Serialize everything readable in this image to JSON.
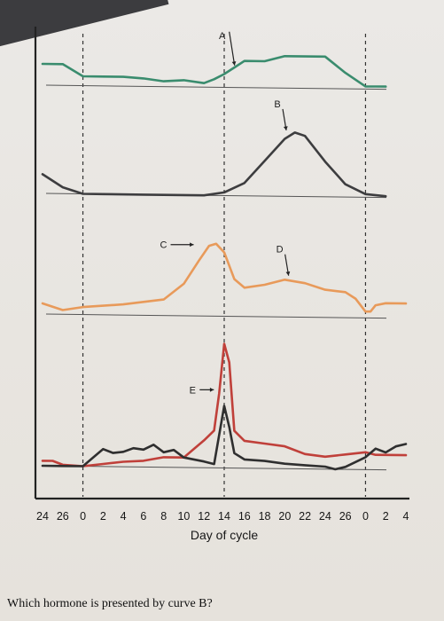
{
  "question": "Which hormone is presented by curve B?",
  "chart_data": {
    "type": "line",
    "title": "",
    "xlabel": "Day of cycle",
    "ylabel": "",
    "x": [
      -4,
      -2,
      0,
      2,
      4,
      6,
      8,
      10,
      12,
      14,
      16,
      18,
      20,
      22,
      24,
      26,
      28,
      30,
      32
    ],
    "xtick_labels": [
      "24",
      "26",
      "0",
      "2",
      "4",
      "6",
      "8",
      "10",
      "12",
      "14",
      "16",
      "18",
      "20",
      "22",
      "24",
      "26",
      "0",
      "2",
      "4"
    ],
    "xlim": [
      -4,
      32
    ],
    "grid": false,
    "reference_days": [
      0,
      14,
      28
    ],
    "annotations": [
      {
        "label": "A",
        "x": 14.5,
        "panel": 0
      },
      {
        "label": "B",
        "x": 20.5,
        "panel": 1
      },
      {
        "label": "C",
        "x": 11.5,
        "panel": 2
      },
      {
        "label": "D",
        "x": 19.5,
        "panel": 2
      },
      {
        "label": "E",
        "x": 13.5,
        "panel": 3
      }
    ],
    "panels": [
      {
        "series": [
          {
            "name": "A",
            "color": "#3a8c6e",
            "points": [
              [
                -4,
                0.8
              ],
              [
                -2,
                0.8
              ],
              [
                0,
                0.35
              ],
              [
                2,
                0.35
              ],
              [
                4,
                0.35
              ],
              [
                6,
                0.3
              ],
              [
                8,
                0.2
              ],
              [
                10,
                0.25
              ],
              [
                12,
                0.15
              ],
              [
                13,
                0.3
              ],
              [
                14,
                0.5
              ],
              [
                15,
                0.75
              ],
              [
                16,
                1.0
              ],
              [
                18,
                1.0
              ],
              [
                20,
                1.2
              ],
              [
                22,
                1.2
              ],
              [
                24,
                1.2
              ],
              [
                26,
                0.6
              ],
              [
                28,
                0.1
              ],
              [
                29,
                0.1
              ],
              [
                30,
                0.1
              ]
            ]
          }
        ]
      },
      {
        "series": [
          {
            "name": "B",
            "color": "#3d3d3f",
            "points": [
              [
                -4,
                0.3
              ],
              [
                -2,
                0.1
              ],
              [
                0,
                0
              ],
              [
                2,
                0
              ],
              [
                6,
                0
              ],
              [
                10,
                0
              ],
              [
                12,
                0
              ],
              [
                14,
                0.05
              ],
              [
                16,
                0.2
              ],
              [
                18,
                0.55
              ],
              [
                20,
                0.9
              ],
              [
                21,
                1.0
              ],
              [
                22,
                0.95
              ],
              [
                24,
                0.55
              ],
              [
                26,
                0.2
              ],
              [
                28,
                0.05
              ],
              [
                30,
                0.02
              ]
            ]
          }
        ]
      },
      {
        "series": [
          {
            "name": "C",
            "color": "#e89a5a",
            "points": [
              [
                -4,
                0.1
              ],
              [
                -2,
                0.04
              ],
              [
                0,
                0.07
              ],
              [
                4,
                0.1
              ],
              [
                8,
                0.15
              ],
              [
                10,
                0.3
              ],
              [
                11.5,
                0.52
              ],
              [
                12.5,
                0.66
              ],
              [
                13.2,
                0.68
              ],
              [
                14,
                0.6
              ],
              [
                15,
                0.35
              ],
              [
                16,
                0.27
              ],
              [
                18,
                0.3
              ],
              [
                20,
                0.35
              ],
              [
                22,
                0.32
              ],
              [
                24,
                0.26
              ],
              [
                26,
                0.24
              ],
              [
                27,
                0.18
              ],
              [
                28,
                0.06
              ],
              [
                28.5,
                0.06
              ],
              [
                29,
                0.12
              ],
              [
                30,
                0.14
              ],
              [
                32,
                0.14
              ]
            ]
          }
        ]
      },
      {
        "series": [
          {
            "name": "E",
            "color": "#c0403a",
            "points": [
              [
                -4,
                0.04
              ],
              [
                -3,
                0.04
              ],
              [
                -2,
                0.01
              ],
              [
                0,
                0
              ],
              [
                2,
                0.02
              ],
              [
                4,
                0.04
              ],
              [
                6,
                0.05
              ],
              [
                8,
                0.08
              ],
              [
                10,
                0.08
              ],
              [
                12,
                0.22
              ],
              [
                13,
                0.3
              ],
              [
                13.5,
                0.6
              ],
              [
                14,
                1.0
              ],
              [
                14.5,
                0.85
              ],
              [
                15,
                0.3
              ],
              [
                16,
                0.22
              ],
              [
                18,
                0.2
              ],
              [
                20,
                0.18
              ],
              [
                22,
                0.12
              ],
              [
                24,
                0.1
              ],
              [
                26,
                0.12
              ],
              [
                28,
                0.14
              ],
              [
                29,
                0.12
              ],
              [
                30,
                0.12
              ],
              [
                32,
                0.12
              ]
            ]
          },
          {
            "name": "",
            "color": "#2f2f2f",
            "points": [
              [
                -4,
                0
              ],
              [
                -2,
                0
              ],
              [
                0,
                0
              ],
              [
                1,
                0.07
              ],
              [
                2,
                0.14
              ],
              [
                3,
                0.11
              ],
              [
                4,
                0.12
              ],
              [
                5,
                0.15
              ],
              [
                6,
                0.14
              ],
              [
                7,
                0.18
              ],
              [
                8,
                0.12
              ],
              [
                9,
                0.14
              ],
              [
                10,
                0.08
              ],
              [
                12,
                0.05
              ],
              [
                13,
                0.03
              ],
              [
                14,
                0.5
              ],
              [
                14.5,
                0.33
              ],
              [
                15,
                0.12
              ],
              [
                16,
                0.07
              ],
              [
                18,
                0.06
              ],
              [
                20,
                0.04
              ],
              [
                22,
                0.03
              ],
              [
                24,
                0.02
              ],
              [
                25,
                0.0
              ],
              [
                26,
                0.02
              ],
              [
                28,
                0.1
              ],
              [
                29,
                0.17
              ],
              [
                30,
                0.14
              ],
              [
                31,
                0.19
              ],
              [
                32,
                0.21
              ]
            ]
          }
        ]
      }
    ]
  }
}
